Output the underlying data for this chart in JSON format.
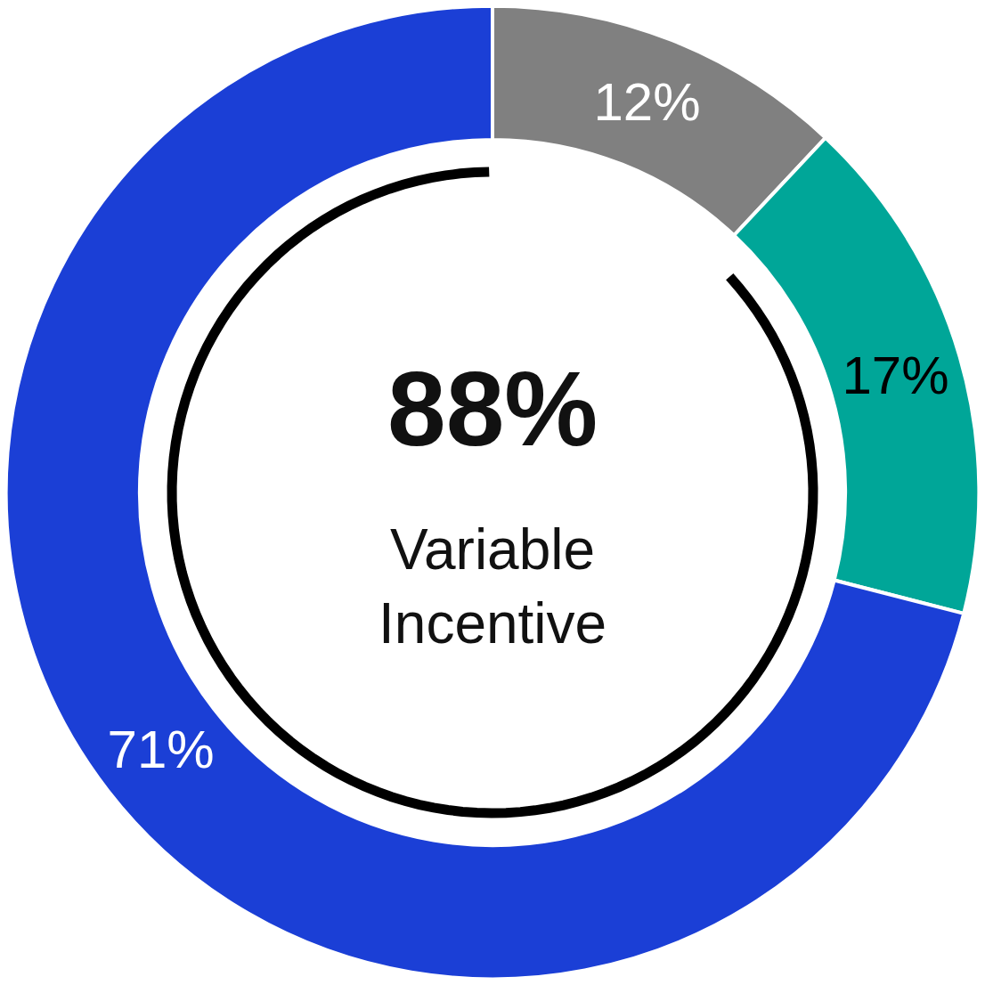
{
  "chart_data": {
    "type": "donut",
    "categories": [
      null,
      null,
      null
    ],
    "values": [
      12,
      17,
      71
    ],
    "colors": [
      "#808080",
      "#00a698",
      "#1b3fd6"
    ],
    "value_labels": [
      "12%",
      "17%",
      "71%"
    ],
    "annotations": [
      "88%",
      "Variable\nIncentive"
    ],
    "legend": false
  }
}
